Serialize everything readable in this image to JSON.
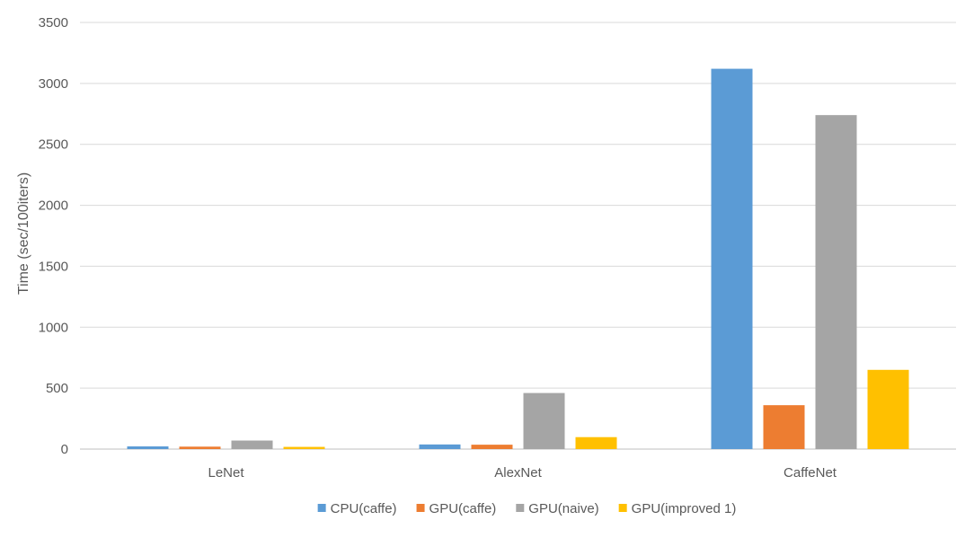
{
  "chart_data": {
    "type": "bar",
    "title": "",
    "xlabel": "",
    "ylabel": "Time (sec/100iters)",
    "ylim": [
      0,
      3500
    ],
    "yticks": [
      0,
      500,
      1000,
      1500,
      2000,
      2500,
      3000,
      3500
    ],
    "grid": true,
    "legend_position": "bottom",
    "categories": [
      "LeNet",
      "AlexNet",
      "CaffeNet"
    ],
    "series": [
      {
        "name": "CPU(caffe)",
        "color": "#5B9BD5",
        "values": [
          22,
          38,
          3120
        ]
      },
      {
        "name": "GPU(caffe)",
        "color": "#ED7D31",
        "values": [
          20,
          36,
          360
        ]
      },
      {
        "name": "GPU(naive)",
        "color": "#A5A5A5",
        "values": [
          70,
          460,
          2740
        ]
      },
      {
        "name": "GPU(improved 1)",
        "color": "#FFC000",
        "values": [
          18,
          98,
          650
        ]
      }
    ]
  }
}
